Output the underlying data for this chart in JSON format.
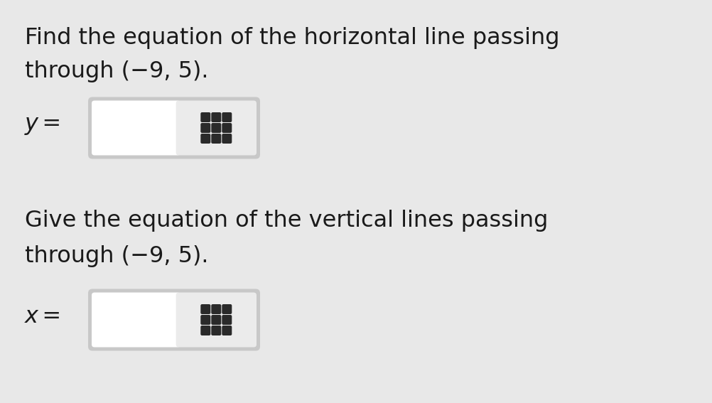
{
  "background_color": "#e8e8e8",
  "text1_line1": "Find the equation of the horizontal line passing",
  "text1_line2": "through (−9, 5).",
  "label1": "y =",
  "text2_line1": "Give the equation of the vertical lines passing",
  "text2_line2": "through (−9, 5).",
  "label2": "x =",
  "text_color": "#1a1a1a",
  "font_size_main": 23,
  "box_outer_color": "#e0e0e0",
  "box_left_color": "#ffffff",
  "box_right_color": "#e0e0e0",
  "box_border_color": "#c8c8c8",
  "dot_color": "#2a2a2a",
  "figsize": [
    10.03,
    5.67
  ],
  "dpi": 100
}
